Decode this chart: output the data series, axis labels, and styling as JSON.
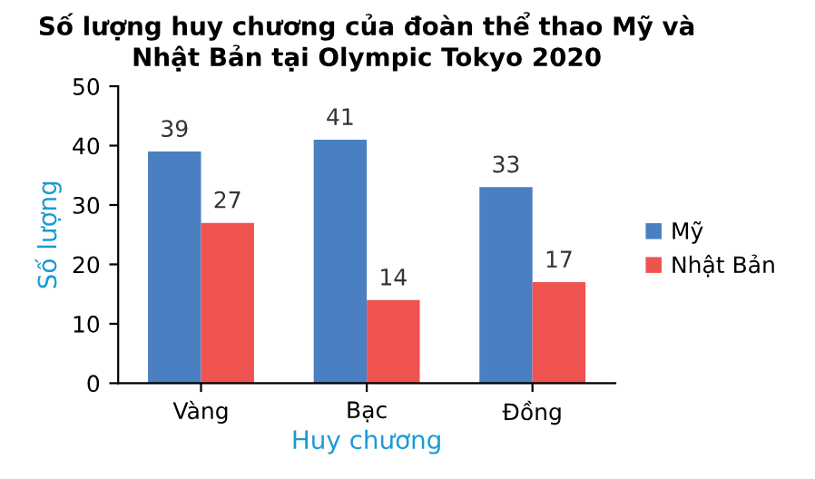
{
  "chart_data": {
    "type": "bar",
    "title": "Số lượng huy chương của đoàn thể thao Mỹ và\nNhật Bản tại Olympic Tokyo 2020",
    "xlabel": "Huy chương",
    "ylabel": "Số lượng",
    "categories": [
      "Vàng",
      "Bạc",
      "Đồng"
    ],
    "series": [
      {
        "name": "Mỹ",
        "color": "#4a7fc1",
        "values": [
          39,
          41,
          33
        ]
      },
      {
        "name": "Nhật Bản",
        "color": "#ef5350",
        "values": [
          27,
          14,
          17
        ]
      }
    ],
    "ylim": [
      0,
      50
    ],
    "yticks": [
      0,
      10,
      20,
      30,
      40,
      50
    ],
    "grid": false,
    "legend": "right",
    "data_labels": true
  }
}
